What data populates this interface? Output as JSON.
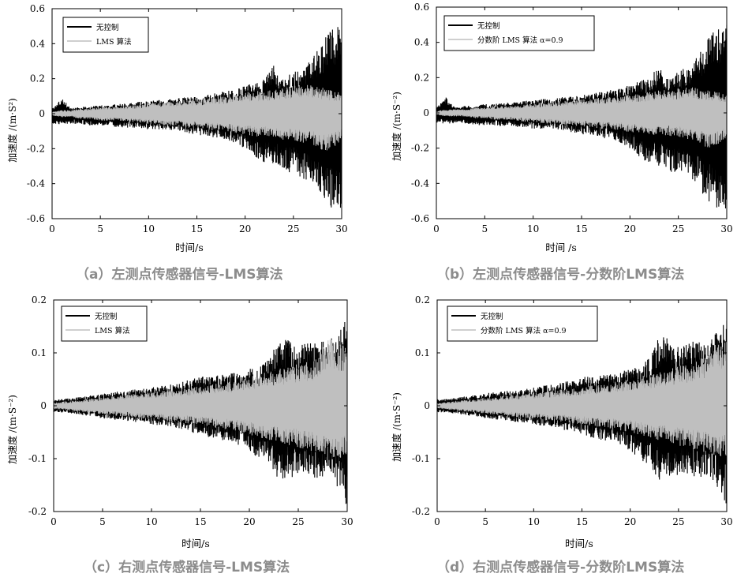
{
  "chart_data": [
    {
      "type": "line",
      "caption": "（a）左测点传感器信号-LMS算法",
      "xlabel": "时间/s",
      "ylabel": "加速度 /(m·S²)",
      "xlim": [
        0,
        30
      ],
      "ylim": [
        -0.6,
        0.6
      ],
      "xticks": [
        "0",
        "5",
        "10",
        "15",
        "20",
        "25",
        "30"
      ],
      "yticks": [
        "0.6",
        "0.4",
        "0.2",
        "0",
        "-0.2",
        "-0.4",
        "-0.6"
      ],
      "legend_position": "top-left",
      "legend": [
        "无控制",
        "LMS 算法"
      ],
      "series": [
        {
          "name": "无控制",
          "color": "#000000",
          "x": [
            0,
            1,
            2,
            3,
            4,
            5,
            6,
            7,
            8,
            9,
            10,
            11,
            12,
            13,
            14,
            15,
            16,
            17,
            18,
            19,
            20,
            21,
            22,
            23,
            24,
            25,
            26,
            27,
            28,
            29,
            30
          ],
          "upper": [
            0.03,
            0.09,
            0.03,
            0.04,
            0.04,
            0.05,
            0.05,
            0.06,
            0.06,
            0.07,
            0.07,
            0.08,
            0.08,
            0.09,
            0.1,
            0.1,
            0.11,
            0.12,
            0.13,
            0.14,
            0.16,
            0.18,
            0.2,
            0.28,
            0.2,
            0.24,
            0.26,
            0.32,
            0.42,
            0.48,
            0.52
          ],
          "lower": [
            -0.06,
            -0.06,
            -0.06,
            -0.06,
            -0.07,
            -0.07,
            -0.07,
            -0.08,
            -0.08,
            -0.08,
            -0.09,
            -0.09,
            -0.09,
            -0.1,
            -0.11,
            -0.12,
            -0.13,
            -0.14,
            -0.15,
            -0.17,
            -0.2,
            -0.26,
            -0.28,
            -0.3,
            -0.33,
            -0.35,
            -0.37,
            -0.42,
            -0.5,
            -0.54,
            -0.55
          ]
        },
        {
          "name": "LMS 算法",
          "color": "#bfbfbf",
          "x": [
            0,
            1,
            2,
            3,
            4,
            5,
            6,
            7,
            8,
            9,
            10,
            11,
            12,
            13,
            14,
            15,
            16,
            17,
            18,
            19,
            20,
            21,
            22,
            23,
            24,
            25,
            26,
            27,
            28,
            29,
            30
          ],
          "upper": [
            0.01,
            0.02,
            0.02,
            0.03,
            0.03,
            0.04,
            0.04,
            0.04,
            0.05,
            0.05,
            0.06,
            0.06,
            0.07,
            0.07,
            0.08,
            0.08,
            0.09,
            0.1,
            0.1,
            0.11,
            0.12,
            0.13,
            0.13,
            0.14,
            0.15,
            0.16,
            0.17,
            0.16,
            0.15,
            0.13,
            0.12
          ],
          "lower": [
            -0.01,
            -0.02,
            -0.02,
            -0.03,
            -0.03,
            -0.04,
            -0.04,
            -0.04,
            -0.05,
            -0.05,
            -0.06,
            -0.06,
            -0.07,
            -0.07,
            -0.08,
            -0.08,
            -0.09,
            -0.1,
            -0.1,
            -0.11,
            -0.12,
            -0.13,
            -0.13,
            -0.14,
            -0.15,
            -0.16,
            -0.17,
            -0.18,
            -0.22,
            -0.2,
            -0.15
          ]
        }
      ]
    },
    {
      "type": "line",
      "caption": "（b）左测点传感器信号-分数阶LMS算法",
      "xlabel": "时间 /s",
      "ylabel": "加速度 /(m·S⁻²)",
      "xlim": [
        0,
        30
      ],
      "ylim": [
        -0.6,
        0.6
      ],
      "xticks": [
        "0",
        "5",
        "10",
        "15",
        "20",
        "25",
        "30"
      ],
      "yticks": [
        "0.6",
        "0.4",
        "0.2",
        "0",
        "-0.2",
        "-0.4",
        "-0.6"
      ],
      "legend_position": "top-left",
      "legend": [
        "无控制",
        "分数阶 LMS 算法 α=0.9"
      ],
      "series": [
        {
          "name": "无控制",
          "color": "#000000",
          "x": [
            0,
            1,
            2,
            3,
            4,
            5,
            6,
            7,
            8,
            9,
            10,
            11,
            12,
            13,
            14,
            15,
            16,
            17,
            18,
            19,
            20,
            21,
            22,
            23,
            24,
            25,
            26,
            27,
            28,
            29,
            30
          ],
          "upper": [
            0.03,
            0.09,
            0.03,
            0.04,
            0.04,
            0.05,
            0.05,
            0.06,
            0.06,
            0.07,
            0.07,
            0.08,
            0.08,
            0.09,
            0.1,
            0.1,
            0.11,
            0.12,
            0.13,
            0.14,
            0.16,
            0.18,
            0.2,
            0.28,
            0.2,
            0.24,
            0.26,
            0.32,
            0.42,
            0.48,
            0.52
          ],
          "lower": [
            -0.06,
            -0.06,
            -0.06,
            -0.06,
            -0.07,
            -0.07,
            -0.07,
            -0.08,
            -0.08,
            -0.08,
            -0.09,
            -0.09,
            -0.09,
            -0.1,
            -0.11,
            -0.12,
            -0.13,
            -0.14,
            -0.15,
            -0.17,
            -0.2,
            -0.26,
            -0.28,
            -0.3,
            -0.33,
            -0.35,
            -0.37,
            -0.42,
            -0.5,
            -0.54,
            -0.55
          ]
        },
        {
          "name": "分数阶 LMS 算法 α=0.9",
          "color": "#bfbfbf",
          "x": [
            0,
            1,
            2,
            3,
            4,
            5,
            6,
            7,
            8,
            9,
            10,
            11,
            12,
            13,
            14,
            15,
            16,
            17,
            18,
            19,
            20,
            21,
            22,
            23,
            24,
            25,
            26,
            27,
            28,
            29,
            30
          ],
          "upper": [
            0.01,
            0.02,
            0.02,
            0.02,
            0.03,
            0.03,
            0.04,
            0.04,
            0.04,
            0.05,
            0.05,
            0.06,
            0.06,
            0.07,
            0.07,
            0.08,
            0.08,
            0.09,
            0.09,
            0.1,
            0.11,
            0.11,
            0.12,
            0.13,
            0.13,
            0.14,
            0.15,
            0.14,
            0.13,
            0.12,
            0.11
          ],
          "lower": [
            -0.01,
            -0.02,
            -0.02,
            -0.02,
            -0.03,
            -0.03,
            -0.04,
            -0.04,
            -0.04,
            -0.05,
            -0.05,
            -0.06,
            -0.06,
            -0.07,
            -0.07,
            -0.08,
            -0.08,
            -0.09,
            -0.09,
            -0.1,
            -0.11,
            -0.11,
            -0.12,
            -0.13,
            -0.13,
            -0.14,
            -0.15,
            -0.16,
            -0.2,
            -0.18,
            -0.14
          ]
        }
      ]
    },
    {
      "type": "line",
      "caption": "（c）右测点传感器信号-LMS算法",
      "xlabel": "时间/s",
      "ylabel": "加速度 /(m·S⁻²)",
      "xlim": [
        0,
        30
      ],
      "ylim": [
        -0.2,
        0.2
      ],
      "xticks": [
        "0",
        "5",
        "10",
        "15",
        "20",
        "25",
        "30"
      ],
      "yticks": [
        "0.2",
        "0.1",
        "0",
        "-0.1",
        "-0.2"
      ],
      "legend_position": "top-left",
      "legend": [
        "无控制",
        "LMS 算法"
      ],
      "series": [
        {
          "name": "无控制",
          "color": "#000000",
          "x": [
            0,
            1,
            2,
            3,
            4,
            5,
            6,
            7,
            8,
            9,
            10,
            11,
            12,
            13,
            14,
            15,
            16,
            17,
            18,
            19,
            20,
            21,
            22,
            23,
            24,
            25,
            26,
            27,
            28,
            29,
            30
          ],
          "upper": [
            0.012,
            0.013,
            0.015,
            0.018,
            0.02,
            0.024,
            0.026,
            0.028,
            0.03,
            0.032,
            0.035,
            0.038,
            0.04,
            0.045,
            0.05,
            0.055,
            0.055,
            0.058,
            0.06,
            0.065,
            0.07,
            0.075,
            0.09,
            0.13,
            0.13,
            0.115,
            0.12,
            0.125,
            0.12,
            0.14,
            0.17
          ],
          "lower": [
            -0.012,
            -0.013,
            -0.015,
            -0.018,
            -0.02,
            -0.024,
            -0.026,
            -0.028,
            -0.03,
            -0.032,
            -0.035,
            -0.038,
            -0.04,
            -0.045,
            -0.05,
            -0.055,
            -0.06,
            -0.065,
            -0.07,
            -0.075,
            -0.085,
            -0.1,
            -0.12,
            -0.14,
            -0.14,
            -0.13,
            -0.135,
            -0.14,
            -0.13,
            -0.16,
            -0.19
          ]
        },
        {
          "name": "LMS 算法",
          "color": "#bfbfbf",
          "x": [
            0,
            1,
            2,
            3,
            4,
            5,
            6,
            7,
            8,
            9,
            10,
            11,
            12,
            13,
            14,
            15,
            16,
            17,
            18,
            19,
            20,
            21,
            22,
            23,
            24,
            25,
            26,
            27,
            28,
            29,
            30
          ],
          "upper": [
            0.006,
            0.008,
            0.01,
            0.012,
            0.014,
            0.016,
            0.018,
            0.02,
            0.022,
            0.024,
            0.026,
            0.028,
            0.03,
            0.032,
            0.034,
            0.037,
            0.04,
            0.043,
            0.046,
            0.05,
            0.055,
            0.06,
            0.065,
            0.07,
            0.075,
            0.08,
            0.085,
            0.09,
            0.13,
            0.12,
            0.11
          ],
          "lower": [
            -0.006,
            -0.008,
            -0.01,
            -0.012,
            -0.014,
            -0.016,
            -0.018,
            -0.02,
            -0.022,
            -0.024,
            -0.026,
            -0.028,
            -0.03,
            -0.032,
            -0.034,
            -0.037,
            -0.04,
            -0.043,
            -0.046,
            -0.05,
            -0.055,
            -0.06,
            -0.065,
            -0.07,
            -0.075,
            -0.08,
            -0.085,
            -0.09,
            -0.095,
            -0.1,
            -0.1
          ]
        }
      ]
    },
    {
      "type": "line",
      "caption": "（d）右测点传感器信号-分数阶LMS算法",
      "xlabel": "时间/s",
      "ylabel": "加速度 /(m·S⁻²)",
      "xlim": [
        0,
        30
      ],
      "ylim": [
        -0.2,
        0.2
      ],
      "xticks": [
        "0",
        "5",
        "10",
        "15",
        "20",
        "25",
        "30"
      ],
      "yticks": [
        "0.2",
        "0.1",
        "0",
        "-0.1",
        "-0.2"
      ],
      "legend_position": "top-left",
      "legend": [
        "无控制",
        "分数阶 LMS 算法 α=0.9"
      ],
      "series": [
        {
          "name": "无控制",
          "color": "#000000",
          "x": [
            0,
            1,
            2,
            3,
            4,
            5,
            6,
            7,
            8,
            9,
            10,
            11,
            12,
            13,
            14,
            15,
            16,
            17,
            18,
            19,
            20,
            21,
            22,
            23,
            24,
            25,
            26,
            27,
            28,
            29,
            30
          ],
          "upper": [
            0.012,
            0.013,
            0.015,
            0.018,
            0.02,
            0.024,
            0.026,
            0.028,
            0.03,
            0.032,
            0.035,
            0.038,
            0.04,
            0.045,
            0.05,
            0.055,
            0.055,
            0.058,
            0.06,
            0.065,
            0.07,
            0.075,
            0.09,
            0.13,
            0.13,
            0.115,
            0.12,
            0.125,
            0.12,
            0.14,
            0.17
          ],
          "lower": [
            -0.012,
            -0.013,
            -0.015,
            -0.018,
            -0.02,
            -0.024,
            -0.026,
            -0.028,
            -0.03,
            -0.032,
            -0.035,
            -0.038,
            -0.04,
            -0.045,
            -0.05,
            -0.055,
            -0.06,
            -0.065,
            -0.07,
            -0.075,
            -0.085,
            -0.1,
            -0.12,
            -0.14,
            -0.14,
            -0.13,
            -0.135,
            -0.14,
            -0.13,
            -0.16,
            -0.19
          ]
        },
        {
          "name": "分数阶 LMS 算法 α=0.9",
          "color": "#bfbfbf",
          "x": [
            0,
            1,
            2,
            3,
            4,
            5,
            6,
            7,
            8,
            9,
            10,
            11,
            12,
            13,
            14,
            15,
            16,
            17,
            18,
            19,
            20,
            21,
            22,
            23,
            24,
            25,
            26,
            27,
            28,
            29,
            30
          ],
          "upper": [
            0.005,
            0.007,
            0.009,
            0.011,
            0.013,
            0.015,
            0.017,
            0.019,
            0.021,
            0.023,
            0.025,
            0.027,
            0.029,
            0.031,
            0.033,
            0.035,
            0.038,
            0.041,
            0.044,
            0.047,
            0.05,
            0.055,
            0.06,
            0.065,
            0.07,
            0.075,
            0.08,
            0.085,
            0.1,
            0.12,
            0.13
          ],
          "lower": [
            -0.005,
            -0.007,
            -0.009,
            -0.011,
            -0.013,
            -0.015,
            -0.017,
            -0.019,
            -0.021,
            -0.023,
            -0.025,
            -0.027,
            -0.029,
            -0.031,
            -0.033,
            -0.035,
            -0.038,
            -0.041,
            -0.044,
            -0.047,
            -0.05,
            -0.055,
            -0.06,
            -0.065,
            -0.07,
            -0.075,
            -0.08,
            -0.085,
            -0.09,
            -0.095,
            -0.1
          ]
        }
      ]
    }
  ]
}
